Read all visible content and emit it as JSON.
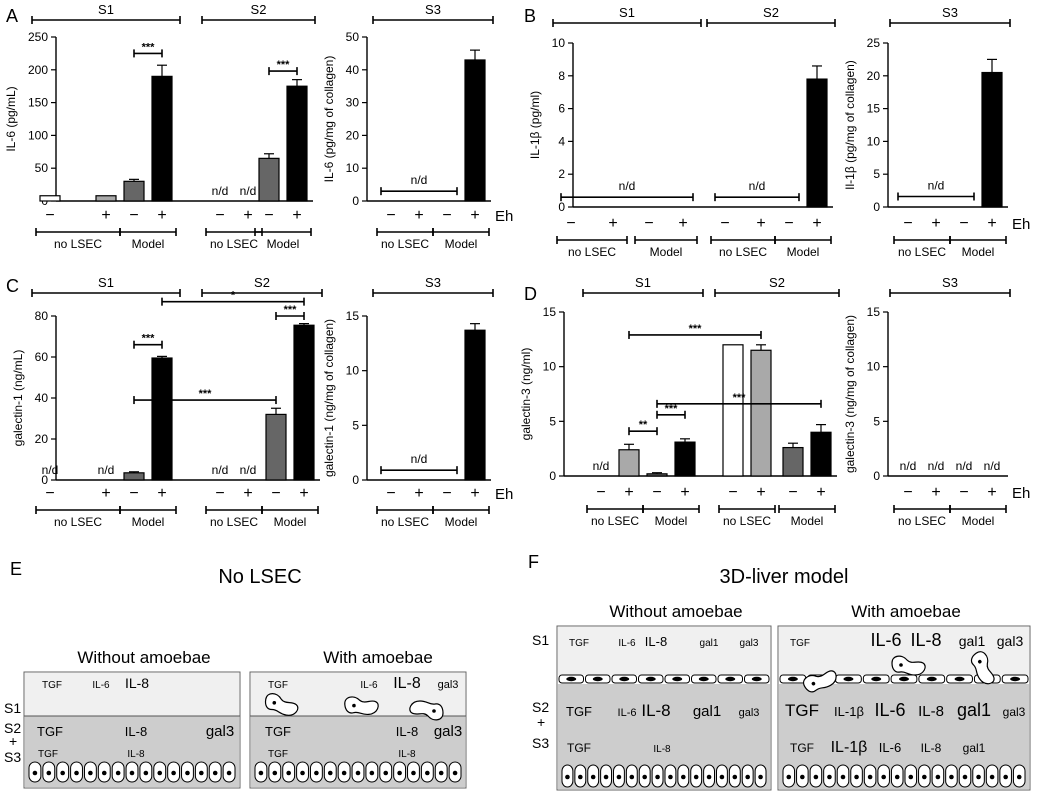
{
  "panel_letters": {
    "a": "A",
    "b": "B",
    "c": "C",
    "d": "D",
    "e": "E",
    "f": "F"
  },
  "common": {
    "nd": "n/d",
    "minus": "−",
    "plus": "+",
    "eh": "Eh",
    "no_lsec": "no LSEC",
    "model": "Model",
    "sig3": "***",
    "sig2": "**",
    "sig1": "*"
  },
  "chart_data": [
    {
      "id": "A1",
      "type": "bar",
      "ylabel": "IL-6 (pg/mL)",
      "ylim": [
        0,
        250
      ],
      "yticks": [
        0,
        50,
        100,
        150,
        200,
        250
      ],
      "segments": [
        {
          "label": "S1",
          "bars": [
            0,
            1,
            2,
            3
          ]
        },
        {
          "label": "S2",
          "bars": [
            4,
            5,
            6,
            7
          ]
        }
      ],
      "bars": [
        {
          "value": 8,
          "err": 0,
          "color": "#ffffff",
          "cond": "-",
          "group": "no LSEC"
        },
        {
          "value": 8,
          "err": 0,
          "color": "#a9a9a9",
          "cond": "+",
          "group": "no LSEC"
        },
        {
          "value": 30,
          "err": 3,
          "color": "#666666",
          "cond": "-",
          "group": "Model"
        },
        {
          "value": 190,
          "err": 17,
          "color": "#000000",
          "cond": "+",
          "group": "Model"
        },
        {
          "value": 0,
          "err": 0,
          "color": "#ffffff",
          "cond": "-",
          "group": "no LSEC",
          "label": "n/d"
        },
        {
          "value": 0,
          "err": 0,
          "color": "#a9a9a9",
          "cond": "+",
          "group": "no LSEC",
          "label": "n/d"
        },
        {
          "value": 65,
          "err": 7,
          "color": "#666666",
          "cond": "-",
          "group": "Model"
        },
        {
          "value": 175,
          "err": 10,
          "color": "#000000",
          "cond": "+",
          "group": "Model"
        }
      ],
      "significance": [
        {
          "from": 2,
          "to": 3,
          "y": 225,
          "label": "***"
        },
        {
          "from": 6,
          "to": 7,
          "y": 198,
          "label": "***"
        }
      ]
    },
    {
      "id": "A2",
      "type": "bar",
      "ylabel": "IL-6 (pg/mg of collagen)",
      "ylim": [
        0,
        50
      ],
      "yticks": [
        0,
        10,
        20,
        30,
        40,
        50
      ],
      "segments": [
        {
          "label": "S3",
          "bars": [
            0,
            1,
            2,
            3
          ]
        }
      ],
      "bars": [
        {
          "value": 0,
          "err": 0,
          "color": "#ffffff",
          "cond": "-",
          "group": "no LSEC"
        },
        {
          "value": 0,
          "err": 0,
          "color": "#a9a9a9",
          "cond": "+",
          "group": "no LSEC"
        },
        {
          "value": 0,
          "err": 0,
          "color": "#666666",
          "cond": "-",
          "group": "Model"
        },
        {
          "value": 43,
          "err": 3,
          "color": "#000000",
          "cond": "+",
          "group": "Model"
        }
      ],
      "ndspan": {
        "from": 0,
        "to": 2,
        "y": 3,
        "label": "n/d"
      },
      "eh": true
    },
    {
      "id": "B1",
      "type": "bar",
      "ylabel": "IL-1β (pg/ml)",
      "ylim": [
        0,
        10
      ],
      "yticks": [
        0,
        2,
        4,
        6,
        8,
        10
      ],
      "segments": [
        {
          "label": "S1",
          "bars": [
            0,
            1,
            2,
            3
          ]
        },
        {
          "label": "S2",
          "bars": [
            4,
            5,
            6,
            7
          ]
        }
      ],
      "bars": [
        {
          "value": 0,
          "err": 0,
          "color": "#ffffff",
          "cond": "-",
          "group": "no LSEC"
        },
        {
          "value": 0,
          "err": 0,
          "color": "#a9a9a9",
          "cond": "+",
          "group": "no LSEC"
        },
        {
          "value": 0,
          "err": 0,
          "color": "#666666",
          "cond": "-",
          "group": "Model"
        },
        {
          "value": 0,
          "err": 0,
          "color": "#000000",
          "cond": "+",
          "group": "Model"
        },
        {
          "value": 0,
          "err": 0,
          "color": "#ffffff",
          "cond": "-",
          "group": "no LSEC"
        },
        {
          "value": 0,
          "err": 0,
          "color": "#a9a9a9",
          "cond": "+",
          "group": "no LSEC"
        },
        {
          "value": 0,
          "err": 0,
          "color": "#666666",
          "cond": "-",
          "group": "Model"
        },
        {
          "value": 7.8,
          "err": 0.8,
          "color": "#000000",
          "cond": "+",
          "group": "Model"
        }
      ],
      "ndspans": [
        {
          "from": 0,
          "to": 3,
          "y": 0.6,
          "label": "n/d"
        },
        {
          "from": 4,
          "to": 6,
          "y": 0.6,
          "label": "n/d"
        }
      ]
    },
    {
      "id": "B2",
      "type": "bar",
      "ylabel": "Il-1β (pg/mg of collagen)",
      "ylim": [
        0,
        25
      ],
      "yticks": [
        0,
        5,
        10,
        15,
        20,
        25
      ],
      "segments": [
        {
          "label": "S3",
          "bars": [
            0,
            1,
            2,
            3
          ]
        }
      ],
      "bars": [
        {
          "value": 0,
          "err": 0,
          "color": "#ffffff",
          "cond": "-",
          "group": "no LSEC"
        },
        {
          "value": 0,
          "err": 0,
          "color": "#a9a9a9",
          "cond": "+",
          "group": "no LSEC"
        },
        {
          "value": 0,
          "err": 0,
          "color": "#666666",
          "cond": "-",
          "group": "Model"
        },
        {
          "value": 20.5,
          "err": 2,
          "color": "#000000",
          "cond": "+",
          "group": "Model"
        }
      ],
      "ndspan": {
        "from": 0,
        "to": 2,
        "y": 1.6,
        "label": "n/d"
      },
      "eh": true
    },
    {
      "id": "C1",
      "type": "bar",
      "ylabel": "galectin-1 (ng/mL)",
      "ylim": [
        0,
        80
      ],
      "yticks": [
        0,
        20,
        40,
        60,
        80
      ],
      "segments": [
        {
          "label": "S1",
          "bars": [
            0,
            1,
            2,
            3
          ]
        },
        {
          "label": "S2",
          "bars": [
            4,
            5,
            6,
            7
          ]
        }
      ],
      "bars": [
        {
          "value": 0,
          "err": 0,
          "color": "#ffffff",
          "cond": "-",
          "group": "no LSEC",
          "label": "n/d"
        },
        {
          "value": 0,
          "err": 0,
          "color": "#a9a9a9",
          "cond": "+",
          "group": "no LSEC",
          "label": "n/d"
        },
        {
          "value": 3.5,
          "err": 0.5,
          "color": "#666666",
          "cond": "-",
          "group": "Model"
        },
        {
          "value": 59.5,
          "err": 0.8,
          "color": "#000000",
          "cond": "+",
          "group": "Model"
        },
        {
          "value": 0,
          "err": 0,
          "color": "#ffffff",
          "cond": "-",
          "group": "no LSEC",
          "label": "n/d"
        },
        {
          "value": 0,
          "err": 0,
          "color": "#a9a9a9",
          "cond": "+",
          "group": "no LSEC",
          "label": "n/d"
        },
        {
          "value": 32,
          "err": 3,
          "color": "#666666",
          "cond": "-",
          "group": "Model"
        },
        {
          "value": 75.5,
          "err": 0.8,
          "color": "#000000",
          "cond": "+",
          "group": "Model"
        }
      ],
      "significance": [
        {
          "from": 2,
          "to": 3,
          "y": 66,
          "label": "***"
        },
        {
          "from": 6,
          "to": 7,
          "y": 80,
          "label": "***"
        },
        {
          "from": 2,
          "to": 6,
          "y": 39,
          "label": "***"
        },
        {
          "from": 3,
          "to": 7,
          "y": 87,
          "label": "*"
        }
      ]
    },
    {
      "id": "C2",
      "type": "bar",
      "ylabel": "galectin-1 (ng/mg of collagen)",
      "ylim": [
        0,
        15
      ],
      "yticks": [
        0,
        5,
        10,
        15
      ],
      "segments": [
        {
          "label": "S3",
          "bars": [
            0,
            1,
            2,
            3
          ]
        }
      ],
      "bars": [
        {
          "value": 0,
          "err": 0,
          "color": "#ffffff",
          "cond": "-",
          "group": "no LSEC"
        },
        {
          "value": 0,
          "err": 0,
          "color": "#a9a9a9",
          "cond": "+",
          "group": "no LSEC"
        },
        {
          "value": 0,
          "err": 0,
          "color": "#666666",
          "cond": "-",
          "group": "Model"
        },
        {
          "value": 13.7,
          "err": 0.6,
          "color": "#000000",
          "cond": "+",
          "group": "Model"
        }
      ],
      "ndspan": {
        "from": 0,
        "to": 2,
        "y": 0.9,
        "label": "n/d"
      },
      "eh": true
    },
    {
      "id": "D1",
      "type": "bar",
      "ylabel": "galectin-3 (ng/ml)",
      "ylim": [
        0,
        15
      ],
      "yticks": [
        0,
        5,
        10,
        15
      ],
      "segments": [
        {
          "label": "S1",
          "bars": [
            0,
            1,
            2,
            3
          ]
        },
        {
          "label": "S2",
          "bars": [
            4,
            5,
            6,
            7
          ]
        }
      ],
      "bars": [
        {
          "value": 0,
          "err": 0,
          "color": "#ffffff",
          "cond": "-",
          "group": "no LSEC",
          "label": "n/d"
        },
        {
          "value": 2.4,
          "err": 0.5,
          "color": "#a9a9a9",
          "cond": "+",
          "group": "no LSEC"
        },
        {
          "value": 0.2,
          "err": 0.1,
          "color": "#666666",
          "cond": "-",
          "group": "Model"
        },
        {
          "value": 3.1,
          "err": 0.3,
          "color": "#000000",
          "cond": "+",
          "group": "Model"
        },
        {
          "value": 12,
          "err": 0,
          "color": "#ffffff",
          "cond": "-",
          "group": "no LSEC"
        },
        {
          "value": 11.5,
          "err": 0.5,
          "color": "#a9a9a9",
          "cond": "+",
          "group": "no LSEC"
        },
        {
          "value": 2.6,
          "err": 0.4,
          "color": "#666666",
          "cond": "-",
          "group": "Model"
        },
        {
          "value": 4,
          "err": 0.7,
          "color": "#000000",
          "cond": "+",
          "group": "Model"
        }
      ],
      "significance": [
        {
          "from": 1,
          "to": 2,
          "y": 4.1,
          "label": "**"
        },
        {
          "from": 2,
          "to": 3,
          "y": 5.6,
          "label": "***"
        },
        {
          "from": 2,
          "to": 7,
          "y": 6.6,
          "label": "***"
        },
        {
          "from": 1,
          "to": 5,
          "y": 12.9,
          "label": "***"
        }
      ]
    },
    {
      "id": "D2",
      "type": "bar",
      "ylabel": "galectin-3 (ng/mg of collagen)",
      "ylim": [
        0,
        15
      ],
      "yticks": [
        0,
        5,
        10,
        15
      ],
      "segments": [
        {
          "label": "S3",
          "bars": [
            0,
            1,
            2,
            3
          ]
        }
      ],
      "bars": [
        {
          "value": 0,
          "err": 0,
          "color": "#ffffff",
          "cond": "-",
          "group": "no LSEC",
          "label": "n/d"
        },
        {
          "value": 0,
          "err": 0,
          "color": "#a9a9a9",
          "cond": "+",
          "group": "no LSEC",
          "label": "n/d"
        },
        {
          "value": 0,
          "err": 0,
          "color": "#666666",
          "cond": "-",
          "group": "Model",
          "label": "n/d"
        },
        {
          "value": 0,
          "err": 0,
          "color": "#000000",
          "cond": "+",
          "group": "Model",
          "label": "n/d"
        }
      ],
      "eh": true
    }
  ],
  "panel_e": {
    "title": "No LSEC",
    "without": {
      "heading": "Without amoebae",
      "s1": [
        "TGF",
        "IL-6",
        "IL-8"
      ],
      "s2a": [
        "TGF",
        "IL-8",
        "gal3"
      ],
      "s2b": [
        "TGF",
        "IL-8"
      ]
    },
    "with": {
      "heading": "With amoebae",
      "s1": [
        "TGF",
        "IL-6",
        "IL-8",
        "gal3"
      ],
      "s2a": [
        "TGF",
        "IL-8",
        "gal3"
      ],
      "s2b": [
        "TGF",
        "IL-8"
      ]
    },
    "row_labels": {
      "s1": "S1",
      "s2": "S2",
      "plus": "+",
      "s3": "S3"
    }
  },
  "panel_f": {
    "title": "3D-liver model",
    "without": {
      "heading": "Without amoebae",
      "s1": [
        "TGF",
        "IL-6",
        "IL-8",
        "gal1",
        "gal3"
      ],
      "s2a": [
        "TGF",
        "IL-6",
        "IL-8",
        "gal1",
        "gal3"
      ],
      "s2b": [
        "TGF",
        "IL-8"
      ]
    },
    "with": {
      "heading": "With amoebae",
      "s1": [
        "TGF",
        "IL-6",
        "IL-8",
        "gal1",
        "gal3"
      ],
      "s2a": [
        "TGF",
        "IL-1β",
        "IL-6",
        "IL-8",
        "gal1",
        "gal3"
      ],
      "s2b": [
        "TGF",
        "IL-1β",
        "IL-6",
        "IL-8",
        "gal1"
      ]
    },
    "row_labels": {
      "s1": "S1",
      "s2": "S2",
      "plus": "+",
      "s3": "S3"
    }
  }
}
